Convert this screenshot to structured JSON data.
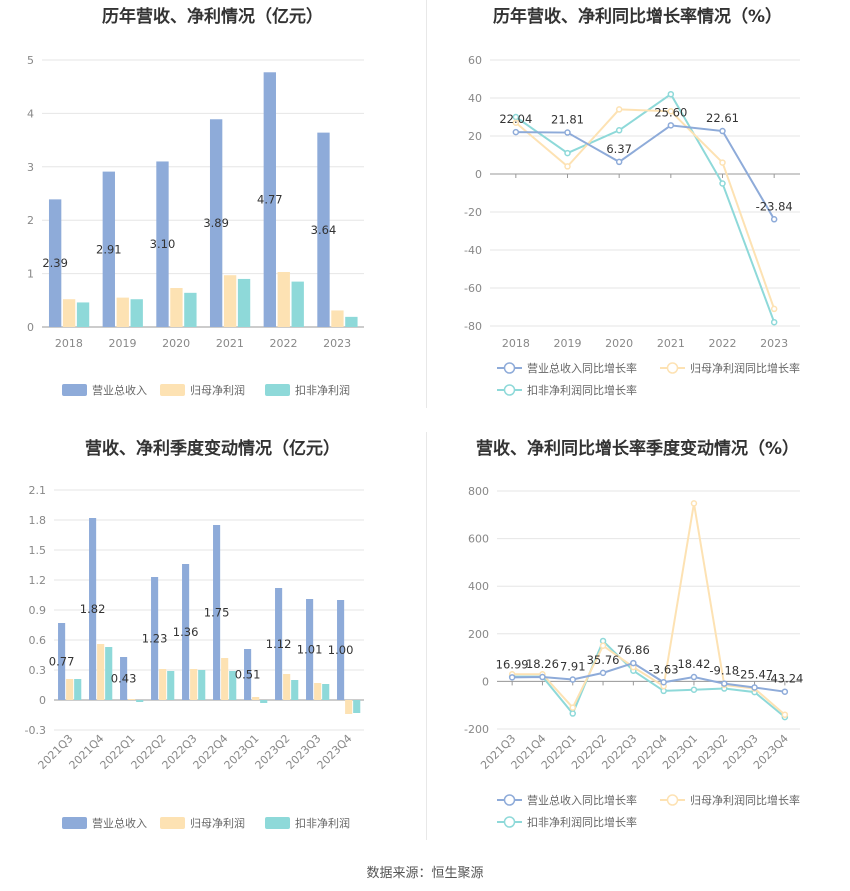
{
  "footer": {
    "label": "数据来源：",
    "source": "恒生聚源"
  },
  "colors": {
    "revenue": "#8eabd9",
    "net_profit": "#fde2b3",
    "deducted_profit": "#8ed9d9",
    "revenue_line": "#8eabd9",
    "net_profit_line": "#fde2b3",
    "deducted_line": "#8ed9d9"
  },
  "chart_data": [
    {
      "type": "bar",
      "title": "历年营收、净利情况（亿元）",
      "categories": [
        "2018",
        "2019",
        "2020",
        "2021",
        "2022",
        "2023"
      ],
      "ylim": [
        0,
        5
      ],
      "yticks": [
        0,
        1,
        2,
        3,
        4,
        5
      ],
      "grid": true,
      "legend": "bottom",
      "series": [
        {
          "name": "营业总收入",
          "values": [
            2.39,
            2.91,
            3.1,
            3.89,
            4.77,
            3.64
          ],
          "labels": [
            "2.39",
            "2.91",
            "3.10",
            "3.89",
            "4.77",
            "3.64"
          ]
        },
        {
          "name": "归母净利润",
          "values": [
            0.52,
            0.55,
            0.73,
            0.97,
            1.03,
            0.31
          ]
        },
        {
          "name": "扣非净利润",
          "values": [
            0.46,
            0.52,
            0.64,
            0.9,
            0.85,
            0.19
          ]
        }
      ]
    },
    {
      "type": "line",
      "title": "历年营收、净利同比增长率情况（%）",
      "categories": [
        "2018",
        "2019",
        "2020",
        "2021",
        "2022",
        "2023"
      ],
      "ylim": [
        -80,
        60
      ],
      "yticks": [
        60,
        40,
        20,
        0,
        -20,
        -40,
        -60,
        -80
      ],
      "grid": true,
      "legend": "bottom",
      "series": [
        {
          "name": "营业总收入同比增长率",
          "values": [
            22.04,
            21.81,
            6.37,
            25.6,
            22.61,
            -23.84
          ],
          "labels": [
            "22.04",
            "21.81",
            "6.37",
            "25.60",
            "22.61",
            "-23.84"
          ]
        },
        {
          "name": "归母净利润同比增长率",
          "values": [
            27,
            4,
            34,
            33,
            6,
            -71
          ]
        },
        {
          "name": "扣非净利润同比增长率",
          "values": [
            30,
            11,
            23,
            42,
            -5,
            -78
          ]
        }
      ]
    },
    {
      "type": "bar",
      "title": "营收、净利季度变动情况（亿元）",
      "categories": [
        "2021Q3",
        "2021Q4",
        "2022Q1",
        "2022Q2",
        "2022Q3",
        "2022Q4",
        "2023Q1",
        "2023Q2",
        "2023Q3",
        "2023Q4"
      ],
      "ylim": [
        -0.3,
        2.1
      ],
      "yticks": [
        2.1,
        1.8,
        1.5,
        1.2,
        0.9,
        0.6,
        0.3,
        0,
        -0.3
      ],
      "grid": true,
      "legend": "bottom",
      "series": [
        {
          "name": "营业总收入",
          "values": [
            0.77,
            1.82,
            0.43,
            1.23,
            1.36,
            1.75,
            0.51,
            1.12,
            1.01,
            1.0
          ],
          "labels": [
            "0.77",
            "1.82",
            "0.43",
            "1.23",
            "1.36",
            "1.75",
            "0.51",
            "1.12",
            "1.01",
            "1.00"
          ]
        },
        {
          "name": "归母净利润",
          "values": [
            0.21,
            0.56,
            0.01,
            0.31,
            0.31,
            0.42,
            0.03,
            0.26,
            0.17,
            -0.14
          ]
        },
        {
          "name": "扣非净利润",
          "values": [
            0.21,
            0.53,
            -0.02,
            0.29,
            0.3,
            0.29,
            -0.03,
            0.2,
            0.16,
            -0.13
          ]
        }
      ]
    },
    {
      "type": "line",
      "title": "营收、净利同比增长率季度变动情况（%）",
      "categories": [
        "2021Q3",
        "2021Q4",
        "2022Q1",
        "2022Q2",
        "2022Q3",
        "2022Q4",
        "2023Q1",
        "2023Q2",
        "2023Q3",
        "2023Q4"
      ],
      "ylim": [
        -200,
        800
      ],
      "yticks": [
        800,
        600,
        400,
        200,
        0,
        -200
      ],
      "grid": true,
      "legend": "bottom",
      "series": [
        {
          "name": "营业总收入同比增长率",
          "values": [
            16.99,
            18.26,
            7.91,
            35.76,
            76.86,
            -3.63,
            18.42,
            -9.18,
            -25.47,
            -43.24
          ],
          "labels": [
            "16.99",
            "18.26",
            "7.91",
            "35.76",
            "76.86",
            "-3.63",
            "18.42",
            "-9.18",
            "-25.47",
            "-43.24"
          ]
        },
        {
          "name": "归母净利润同比增长率",
          "values": [
            30,
            30,
            -110,
            150,
            60,
            -20,
            748,
            -15,
            -30,
            -140
          ]
        },
        {
          "name": "扣非净利润同比增长率",
          "values": [
            20,
            20,
            -135,
            170,
            45,
            -40,
            -35,
            -30,
            -45,
            -150
          ]
        }
      ]
    }
  ]
}
